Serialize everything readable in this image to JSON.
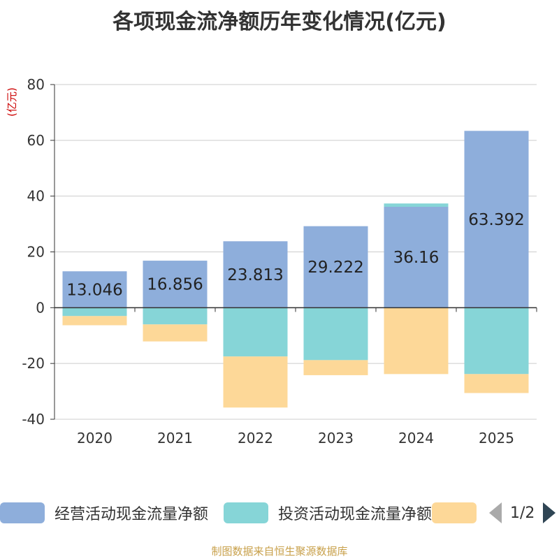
{
  "chart_data": {
    "type": "bar",
    "stacked": true,
    "title": "各项现金流净额历年变化情况(亿元)",
    "ylabel": "(亿元)",
    "xlabel": "",
    "ylim": [
      -40,
      80
    ],
    "yticks": [
      80,
      60,
      40,
      20,
      0,
      -20,
      -40
    ],
    "categories": [
      "2020",
      "2021",
      "2022",
      "2023",
      "2024",
      "2025"
    ],
    "series": [
      {
        "name": "经营活动现金流量净额",
        "color": "#8eaedb",
        "values": [
          13.046,
          16.856,
          23.813,
          29.222,
          36.16,
          63.392
        ],
        "labels": [
          "13.046",
          "16.856",
          "23.813",
          "29.222",
          "36.16",
          "63.392"
        ]
      },
      {
        "name": "投资活动现金流量净额",
        "color": "#86d5d7",
        "values": [
          -3.0,
          -6.0,
          -17.5,
          -18.8,
          1.2,
          -23.8
        ]
      },
      {
        "name": "",
        "color": "#fdd898",
        "values": [
          -3.3,
          -6.1,
          -18.3,
          -5.4,
          -23.8,
          -6.8
        ]
      }
    ],
    "grid": true,
    "legend_position": "bottom"
  },
  "legend": {
    "page_text": "1/2"
  },
  "source": "制图数据来自恒生聚源数据库"
}
